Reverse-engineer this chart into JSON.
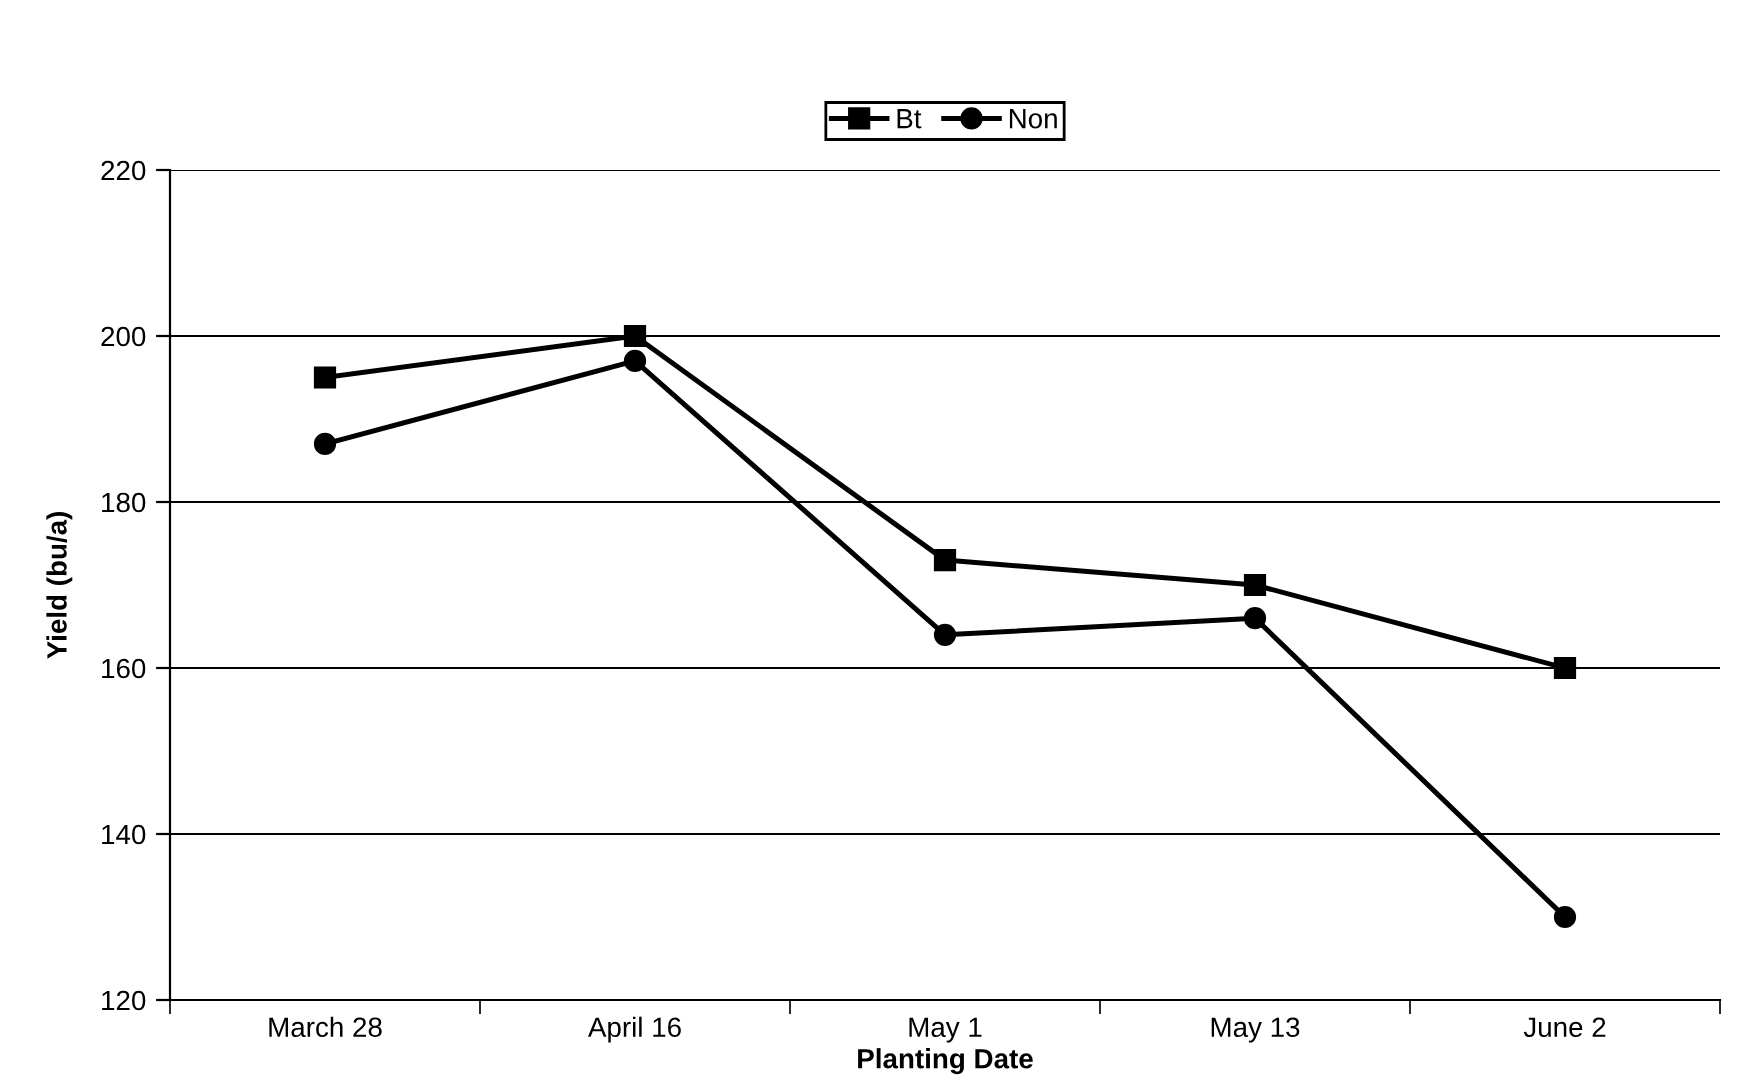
{
  "chart_data": {
    "type": "line",
    "xlabel": "Planting Date",
    "ylabel": "Yield (bu/a)",
    "categories": [
      "March 28",
      "April 16",
      "May 1",
      "May 13",
      "June 2"
    ],
    "series": [
      {
        "name": "Bt",
        "color": "#000000",
        "marker": "square",
        "values": [
          195,
          200,
          173,
          170,
          160
        ]
      },
      {
        "name": "Non",
        "color": "#000000",
        "marker": "circle",
        "values": [
          187,
          197,
          164,
          166,
          130
        ]
      }
    ],
    "ylim": [
      120,
      220
    ],
    "yticks": [
      120,
      140,
      160,
      180,
      200,
      220
    ],
    "grid": "y",
    "legend": "top",
    "line_style": "solid"
  }
}
